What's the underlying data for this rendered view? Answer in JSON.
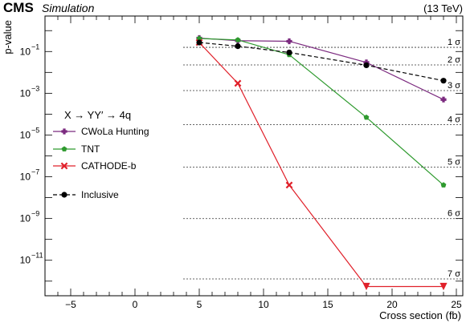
{
  "header": {
    "experiment": "CMS",
    "status": "Simulation",
    "energy": "(13 TeV)"
  },
  "chart_data": {
    "type": "line",
    "xlabel": "Cross section (fb)",
    "ylabel": "p-value",
    "xlim": [
      -7,
      25.5
    ],
    "ylim_log10": [
      -12.7,
      0.7
    ],
    "yscale": "log",
    "x_ticks": [
      -5,
      0,
      5,
      10,
      15,
      20,
      25
    ],
    "y_tick_labels": [
      {
        "exp": -1,
        "text": "10",
        "sup": "−1"
      },
      {
        "exp": -3,
        "text": "10",
        "sup": "−3"
      },
      {
        "exp": -5,
        "text": "10",
        "sup": "−5"
      },
      {
        "exp": -7,
        "text": "10",
        "sup": "−7"
      },
      {
        "exp": -9,
        "text": "10",
        "sup": "−9"
      },
      {
        "exp": -11,
        "text": "10",
        "sup": "−11"
      }
    ],
    "sigma_lines": [
      {
        "label": "1 σ",
        "p": 0.1587
      },
      {
        "label": "2 σ",
        "p": 0.02275
      },
      {
        "label": "3 σ",
        "p": 0.00135
      },
      {
        "label": "4 σ",
        "p": 3.17e-05
      },
      {
        "label": "5 σ",
        "p": 2.87e-07
      },
      {
        "label": "6 σ",
        "p": 9.9e-10
      },
      {
        "label": "7 σ",
        "p": 1.28e-12
      }
    ],
    "legend_title": "X → YY′ → 4q",
    "series": [
      {
        "name": "CWoLa Hunting",
        "color": "#7b2a7f",
        "marker": "cross",
        "dashed": false,
        "x": [
          5,
          8,
          12,
          18,
          24
        ],
        "y": [
          0.44,
          0.33,
          0.31,
          0.03,
          0.0005
        ]
      },
      {
        "name": "TNT",
        "color": "#2e9a2e",
        "marker": "pentagon",
        "dashed": false,
        "x": [
          5,
          8,
          12,
          18,
          24
        ],
        "y": [
          0.42,
          0.36,
          0.07,
          7e-05,
          4e-08
        ]
      },
      {
        "name": "CATHODE-b",
        "color": "#e0202a",
        "marker": "x",
        "dashed": false,
        "x": [
          5,
          8,
          12,
          18,
          24
        ],
        "y": [
          0.27,
          0.003,
          4e-08,
          5.5e-13,
          5.5e-13
        ],
        "limit_points": [
          3,
          4
        ]
      },
      {
        "name": "Inclusive",
        "color": "#000000",
        "marker": "circle",
        "dashed": true,
        "x": [
          5,
          8,
          12,
          18,
          24
        ],
        "y": [
          0.27,
          0.18,
          0.09,
          0.022,
          0.004
        ]
      }
    ],
    "grid": false,
    "legend_position": "middle-left"
  }
}
